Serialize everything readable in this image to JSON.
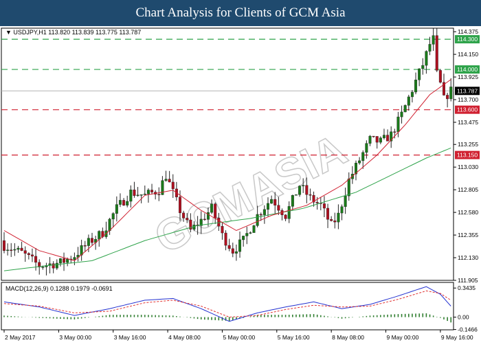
{
  "banner": {
    "title": "Chart Analysis for Clients of GCM Asia"
  },
  "watermark": "GCMASIA",
  "colors": {
    "bull": "#1a7a1a",
    "bear": "#b01020",
    "ma_fast": "#d02030",
    "ma_slow": "#2ea34a",
    "resistance": "#2ea34a",
    "support": "#d02030",
    "macd_line": "#2230d0",
    "signal_line": "#e03030",
    "hist": "#2e7d2e",
    "current_price_bg": "#000000"
  },
  "chart_data": [
    {
      "type": "candlestick",
      "symbol": "USDJPY,H1",
      "ohlc_header": "113.820 113.839 113.775 113.787",
      "ylim": [
        111.905,
        114.41
      ],
      "y_ticks": [
        "114.375",
        "114.150",
        "113.925",
        "113.700",
        "113.475",
        "113.255",
        "113.030",
        "112.805",
        "112.580",
        "112.355",
        "112.130",
        "111.905"
      ],
      "x_ticks": [
        "2 May 2017",
        "3 May 00:00",
        "3 May 16:00",
        "4 May 08:00",
        "5 May 00:00",
        "5 May 16:00",
        "8 May 08:00",
        "9 May 00:00",
        "9 May 16:00"
      ],
      "levels": [
        {
          "label": "114.300",
          "value": 114.3,
          "kind": "resistance"
        },
        {
          "label": "114.000",
          "value": 114.0,
          "kind": "resistance"
        },
        {
          "label": "113.600",
          "value": 113.6,
          "kind": "support"
        },
        {
          "label": "113.150",
          "value": 113.15,
          "kind": "support"
        }
      ],
      "current_price": {
        "label": "113.787",
        "value": 113.787
      },
      "close_anchors": [
        [
          0,
          112.25
        ],
        [
          5,
          112.18
        ],
        [
          10,
          112.05
        ],
        [
          16,
          112.08
        ],
        [
          20,
          112.15
        ],
        [
          24,
          112.28
        ],
        [
          28,
          112.38
        ],
        [
          32,
          112.62
        ],
        [
          36,
          112.78
        ],
        [
          40,
          112.75
        ],
        [
          44,
          112.8
        ],
        [
          46,
          112.95
        ],
        [
          50,
          112.6
        ],
        [
          53,
          112.4
        ],
        [
          56,
          112.5
        ],
        [
          59,
          112.62
        ],
        [
          62,
          112.35
        ],
        [
          65,
          112.2
        ],
        [
          68,
          112.3
        ],
        [
          72,
          112.55
        ],
        [
          76,
          112.72
        ],
        [
          80,
          112.55
        ],
        [
          84,
          112.85
        ],
        [
          87,
          112.72
        ],
        [
          90,
          112.65
        ],
        [
          93,
          112.45
        ],
        [
          95,
          112.55
        ],
        [
          98,
          112.9
        ],
        [
          101,
          113.1
        ],
        [
          104,
          113.3
        ],
        [
          107,
          113.28
        ],
        [
          110,
          113.35
        ],
        [
          113,
          113.55
        ],
        [
          116,
          113.8
        ],
        [
          119,
          114.05
        ],
        [
          121,
          114.25
        ],
        [
          122,
          114.3
        ],
        [
          123,
          113.95
        ],
        [
          124,
          113.85
        ],
        [
          125,
          113.7
        ],
        [
          126,
          113.75
        ],
        [
          127,
          113.79
        ]
      ],
      "ma_fast_anchors": [
        [
          0,
          112.4
        ],
        [
          10,
          112.2
        ],
        [
          20,
          112.1
        ],
        [
          30,
          112.4
        ],
        [
          40,
          112.75
        ],
        [
          48,
          112.8
        ],
        [
          56,
          112.6
        ],
        [
          66,
          112.4
        ],
        [
          76,
          112.55
        ],
        [
          86,
          112.65
        ],
        [
          96,
          112.85
        ],
        [
          106,
          113.15
        ],
        [
          114,
          113.45
        ],
        [
          121,
          113.75
        ],
        [
          127,
          113.9
        ]
      ],
      "ma_slow_anchors": [
        [
          0,
          112.0
        ],
        [
          12,
          112.05
        ],
        [
          25,
          112.1
        ],
        [
          40,
          112.3
        ],
        [
          55,
          112.45
        ],
        [
          70,
          112.52
        ],
        [
          85,
          112.62
        ],
        [
          100,
          112.78
        ],
        [
          110,
          112.95
        ],
        [
          120,
          113.12
        ],
        [
          127,
          113.22
        ]
      ]
    },
    {
      "type": "macd",
      "header": "MACD(12,26,9) 0.1288 0.1979 -0.0691",
      "ylim": [
        -0.15,
        0.41
      ],
      "y_ticks": [
        "0.3435",
        "0.00",
        "-0.1466"
      ],
      "macd_anchors": [
        [
          0,
          0.18
        ],
        [
          10,
          0.12
        ],
        [
          20,
          0.02
        ],
        [
          30,
          0.1
        ],
        [
          40,
          0.2
        ],
        [
          48,
          0.22
        ],
        [
          56,
          0.1
        ],
        [
          64,
          -0.05
        ],
        [
          72,
          0.05
        ],
        [
          80,
          0.12
        ],
        [
          88,
          0.18
        ],
        [
          96,
          0.1
        ],
        [
          104,
          0.15
        ],
        [
          112,
          0.25
        ],
        [
          120,
          0.36
        ],
        [
          124,
          0.27
        ],
        [
          127,
          0.13
        ]
      ],
      "signal_anchors": [
        [
          0,
          0.16
        ],
        [
          10,
          0.13
        ],
        [
          20,
          0.05
        ],
        [
          30,
          0.07
        ],
        [
          40,
          0.17
        ],
        [
          48,
          0.2
        ],
        [
          56,
          0.13
        ],
        [
          64,
          0.0
        ],
        [
          72,
          0.02
        ],
        [
          80,
          0.09
        ],
        [
          88,
          0.14
        ],
        [
          96,
          0.12
        ],
        [
          104,
          0.13
        ],
        [
          112,
          0.21
        ],
        [
          120,
          0.31
        ],
        [
          124,
          0.28
        ],
        [
          127,
          0.2
        ]
      ]
    }
  ]
}
